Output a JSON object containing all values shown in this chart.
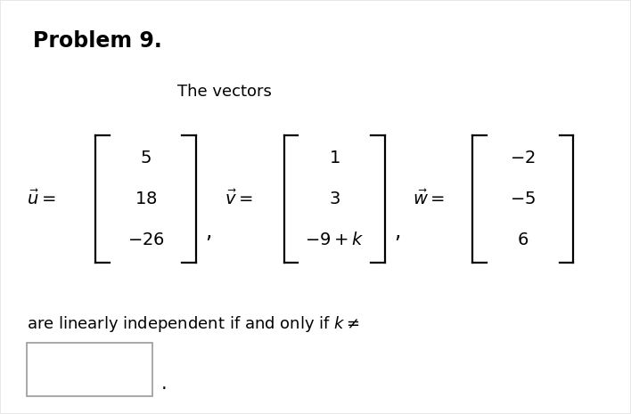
{
  "title": "Problem 9.",
  "subtitle": "The vectors",
  "bg_color": "#e8e8e8",
  "card_color": "#ffffff",
  "text_color": "#000000",
  "u_vec": [
    "5",
    "18",
    "-26"
  ],
  "v_vec": [
    "1",
    "3",
    "-9 + k"
  ],
  "w_vec": [
    "-2",
    "-5",
    "6"
  ],
  "conclusion": "are linearly independent if and only if $k \\neq$",
  "period": ".",
  "font_size_title": 17,
  "font_size_body": 13,
  "font_size_math": 14
}
